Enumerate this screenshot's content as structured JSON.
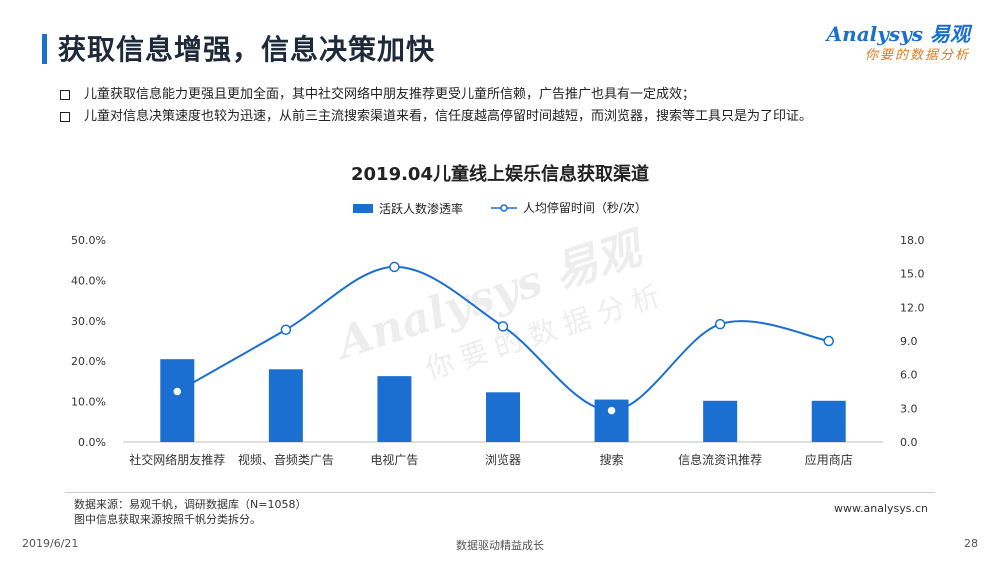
{
  "header": {
    "title": "获取信息增强，信息决策加快"
  },
  "logo": {
    "brand": "Analysys 易观",
    "tagline": "你要的数据分析"
  },
  "bullets": [
    "儿童获取信息能力更强且更加全面，其中社交网络中朋友推荐更受儿童所信赖，广告推广也具有一定成效；",
    "儿童对信息决策速度也较为迅速，从前三主流搜索渠道来看，信任度越高停留时间越短，而浏览器，搜索等工具只是为了印证。"
  ],
  "watermark": {
    "brand": "Analysys 易观",
    "tagline": "你要的数据分析"
  },
  "chart_data": {
    "type": "bar",
    "title": "2019.04儿童线上娱乐信息获取渠道",
    "categories": [
      "社交网络朋友推荐",
      "视频、音频类广告",
      "电视广告",
      "浏览器",
      "搜索",
      "信息流资讯推荐",
      "应用商店"
    ],
    "series": [
      {
        "name": "活跃人数渗透率",
        "type": "bar",
        "axis": "left",
        "values": [
          20.5,
          18.0,
          16.3,
          12.3,
          10.5,
          10.2,
          10.2
        ],
        "color": "#1a6fd0"
      },
      {
        "name": "人均停留时间（秒/次）",
        "type": "line",
        "axis": "right",
        "values": [
          4.5,
          10.0,
          15.6,
          10.3,
          2.8,
          10.5,
          9.0
        ],
        "color": "#1a6fd0"
      }
    ],
    "y_left": {
      "min": 0,
      "max": 50,
      "ticks": [
        "0.0%",
        "10.0%",
        "20.0%",
        "30.0%",
        "40.0%",
        "50.0%"
      ]
    },
    "y_right": {
      "min": 0,
      "max": 18,
      "ticks": [
        "0.0",
        "3.0",
        "6.0",
        "9.0",
        "12.0",
        "15.0",
        "18.0"
      ]
    },
    "grid": false,
    "legend": "top"
  },
  "source": {
    "line1": "数据来源：易观千帆，调研数据库（N=1058）",
    "line2": "图中信息获取来源按照千帆分类拆分。"
  },
  "site": "www.analysys.cn",
  "footer": {
    "date": "2019/6/21",
    "center": "数据驱动精益成长",
    "page": "28"
  }
}
